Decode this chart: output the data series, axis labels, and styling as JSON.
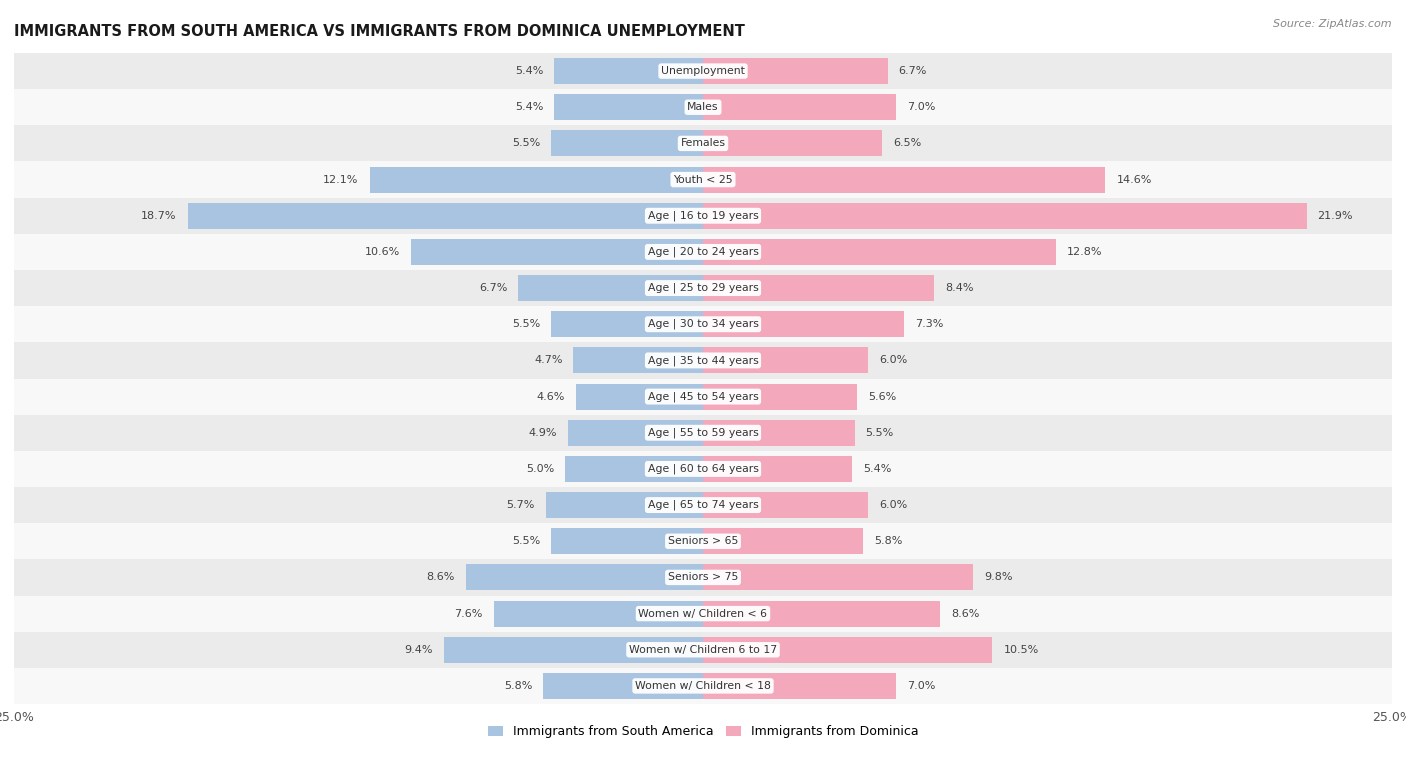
{
  "title": "IMMIGRANTS FROM SOUTH AMERICA VS IMMIGRANTS FROM DOMINICA UNEMPLOYMENT",
  "source": "Source: ZipAtlas.com",
  "categories": [
    "Unemployment",
    "Males",
    "Females",
    "Youth < 25",
    "Age | 16 to 19 years",
    "Age | 20 to 24 years",
    "Age | 25 to 29 years",
    "Age | 30 to 34 years",
    "Age | 35 to 44 years",
    "Age | 45 to 54 years",
    "Age | 55 to 59 years",
    "Age | 60 to 64 years",
    "Age | 65 to 74 years",
    "Seniors > 65",
    "Seniors > 75",
    "Women w/ Children < 6",
    "Women w/ Children 6 to 17",
    "Women w/ Children < 18"
  ],
  "south_america": [
    5.4,
    5.4,
    5.5,
    12.1,
    18.7,
    10.6,
    6.7,
    5.5,
    4.7,
    4.6,
    4.9,
    5.0,
    5.7,
    5.5,
    8.6,
    7.6,
    9.4,
    5.8
  ],
  "dominica": [
    6.7,
    7.0,
    6.5,
    14.6,
    21.9,
    12.8,
    8.4,
    7.3,
    6.0,
    5.6,
    5.5,
    5.4,
    6.0,
    5.8,
    9.8,
    8.6,
    10.5,
    7.0
  ],
  "color_south_america": "#a8c4e0",
  "color_dominica": "#f4a8bc",
  "background_row_light": "#ebebeb",
  "background_row_white": "#f8f8f8",
  "xlim": 25.0,
  "bar_height": 0.72,
  "label_south_america": "Immigrants from South America",
  "label_dominica": "Immigrants from Dominica",
  "value_color": "#444444",
  "label_bg": "#ffffff",
  "title_color": "#1a1a1a",
  "source_color": "#888888"
}
